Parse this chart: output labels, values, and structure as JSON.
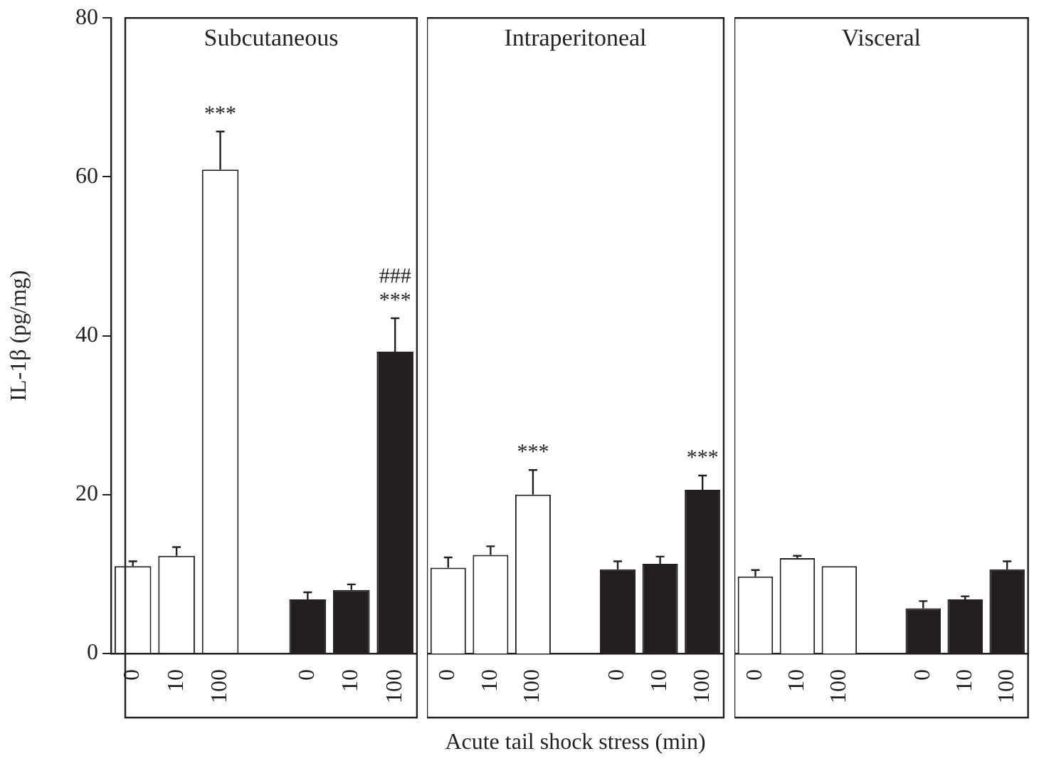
{
  "chart_data": [
    {
      "type": "bar",
      "title": "Subcutaneous",
      "ylabel": "IL-1β (pg/mg)",
      "categories": [
        "0",
        "10",
        "100",
        null,
        "0",
        "10",
        "100"
      ],
      "values": [
        11.0,
        12.3,
        60.9,
        null,
        6.8,
        8.0,
        38.0
      ],
      "colors": [
        "#ffffff",
        "#ffffff",
        "#ffffff",
        "#ffffff",
        "#231f20",
        "#231f20",
        "#231f20"
      ],
      "errors": [
        [
          11.0,
          11.6
        ],
        [
          12.3,
          13.4
        ],
        [
          60.9,
          65.7
        ],
        null,
        [
          6.8,
          7.7
        ],
        [
          8.0,
          8.7
        ],
        [
          38.0,
          42.2
        ]
      ],
      "ylim": [
        0,
        80
      ],
      "yticks": [
        0,
        20,
        40,
        60,
        80
      ],
      "grid": false,
      "value_labels": [
        null,
        null,
        "***",
        null,
        null,
        null,
        "***"
      ],
      "annotations": [
        "###"
      ]
    },
    {
      "type": "bar",
      "title": "Intraperitoneal",
      "xlabel": "Acute tail shock stress (min)",
      "categories": [
        "0",
        "10",
        "100",
        null,
        "0",
        "10",
        "100"
      ],
      "values": [
        10.8,
        12.4,
        20.0,
        null,
        10.6,
        11.3,
        20.6
      ],
      "colors": [
        "#ffffff",
        "#ffffff",
        "#ffffff",
        "#ffffff",
        "#231f20",
        "#231f20",
        "#231f20"
      ],
      "errors": [
        [
          10.8,
          12.1
        ],
        [
          12.4,
          13.5
        ],
        [
          20.0,
          23.1
        ],
        null,
        [
          10.6,
          11.6
        ],
        [
          11.3,
          12.2
        ],
        [
          20.6,
          22.4
        ]
      ],
      "ylim": [
        0,
        80
      ],
      "yticks": [
        0,
        20,
        40,
        60,
        80
      ],
      "tick_labels": "x",
      "grid": false,
      "value_labels": [
        null,
        null,
        "***",
        null,
        null,
        null,
        "***"
      ]
    },
    {
      "type": "bar",
      "title": "Visceral",
      "categories": [
        "0",
        "10",
        "100",
        null,
        "0",
        "10",
        "100"
      ],
      "values": [
        9.7,
        12.0,
        11.0,
        null,
        5.7,
        6.8,
        10.6
      ],
      "colors": [
        "#ffffff",
        "#ffffff",
        "#ffffff",
        "#ffffff",
        "#231f20",
        "#231f20",
        "#231f20"
      ],
      "errors": [
        [
          9.7,
          10.5
        ],
        [
          12.0,
          12.3
        ],
        null,
        null,
        [
          5.7,
          6.6
        ],
        [
          6.8,
          7.2
        ],
        [
          10.6,
          11.6
        ]
      ],
      "ylim": [
        0,
        80
      ],
      "yticks": [
        0,
        20,
        40,
        60,
        80
      ],
      "tick_labels": "x",
      "grid": false
    }
  ]
}
